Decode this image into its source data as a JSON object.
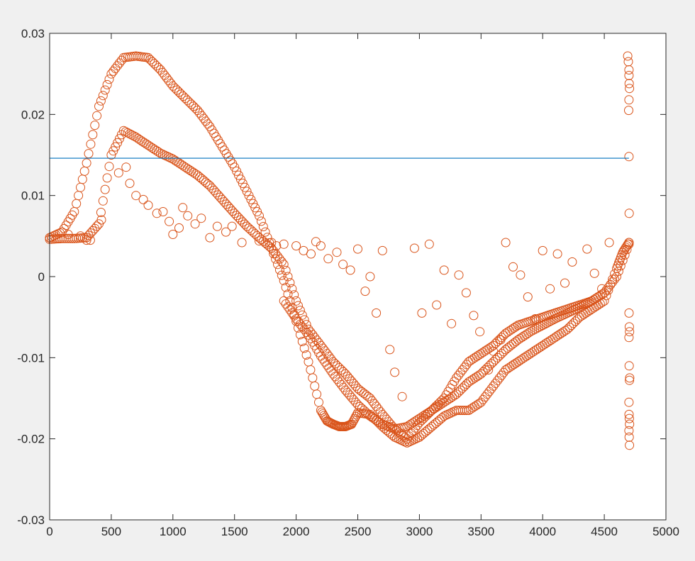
{
  "colors": {
    "background": "#f0f0f0",
    "axes_background": "#ffffff",
    "axis": "#262626",
    "scatter": "#d95319",
    "line": "#0072bd"
  },
  "chart_data": {
    "type": "scatter",
    "title": "",
    "xlabel": "",
    "ylabel": "",
    "xlim": [
      0,
      5000
    ],
    "ylim": [
      -0.03,
      0.03
    ],
    "grid": false,
    "legend": "none",
    "x_ticks": [
      0,
      500,
      1000,
      1500,
      2000,
      2500,
      3000,
      3500,
      4000,
      4500,
      5000
    ],
    "x_tick_labels": [
      "0",
      "500",
      "1000",
      "1500",
      "2000",
      "2500",
      "3000",
      "3500",
      "4000",
      "4500",
      "5000"
    ],
    "y_ticks": [
      -0.03,
      -0.02,
      -0.01,
      0,
      0.01,
      0.02,
      0.03
    ],
    "y_tick_labels": [
      "-0.03",
      "-0.02",
      "-0.01",
      "0",
      "0.01",
      "0.02",
      "0.03"
    ],
    "marker": "open-circle",
    "horizontal_line": {
      "y": 0.0146,
      "x_range": [
        0,
        4700
      ]
    },
    "series": [
      {
        "role": "upper-band",
        "x": [
          0,
          100,
          200,
          300,
          400,
          500,
          600,
          700,
          800,
          900,
          1000,
          1100,
          1200,
          1300,
          1400,
          1500,
          1600,
          1700,
          1800,
          1900,
          2000,
          2100,
          2200,
          2250,
          2300,
          2350,
          2400,
          2450,
          2500,
          2600,
          2700,
          2800,
          2900,
          3000,
          3100,
          3200,
          3300,
          3400,
          3500,
          3600,
          3700,
          3800,
          3900,
          4000,
          4100,
          4200,
          4300,
          4400,
          4500,
          4600,
          4650,
          4700
        ],
        "y": [
          0.0048,
          0.0055,
          0.008,
          0.014,
          0.021,
          0.025,
          0.027,
          0.0272,
          0.027,
          0.0255,
          0.0235,
          0.022,
          0.0205,
          0.0185,
          0.016,
          0.0135,
          0.0105,
          0.0075,
          0.0035,
          -0.0005,
          -0.0055,
          -0.0105,
          -0.0165,
          -0.0178,
          -0.0182,
          -0.0185,
          -0.0185,
          -0.0182,
          -0.0168,
          -0.017,
          -0.0185,
          -0.0198,
          -0.0205,
          -0.0198,
          -0.0185,
          -0.0172,
          -0.0165,
          -0.0165,
          -0.0155,
          -0.0135,
          -0.0115,
          -0.0105,
          -0.0095,
          -0.0085,
          -0.0075,
          -0.0065,
          -0.005,
          -0.004,
          -0.003,
          0.001,
          0.003,
          0.0042
        ]
      },
      {
        "role": "lower-band",
        "x": [
          0,
          100,
          200,
          300,
          400,
          500,
          600,
          700,
          800,
          900,
          1000,
          1100,
          1200,
          1300,
          1400,
          1500,
          1600,
          1700,
          1800,
          1900,
          2000,
          2100,
          2200,
          2300,
          2400,
          2500,
          2600,
          2700,
          2800,
          2900,
          3000,
          3100,
          3200,
          3300,
          3400,
          3500,
          3600,
          3700,
          3800,
          3900,
          4000,
          4100,
          4200,
          4300,
          4400,
          4500,
          4600,
          4700
        ],
        "y": [
          0.0046,
          0.0047,
          0.0047,
          0.0048,
          0.0065,
          0.015,
          0.018,
          0.0172,
          0.0162,
          0.0152,
          0.0145,
          0.0135,
          0.0125,
          0.0112,
          0.0095,
          0.0078,
          0.0062,
          0.0048,
          0.0035,
          0.0015,
          -0.003,
          -0.0065,
          -0.0085,
          -0.0105,
          -0.012,
          -0.0138,
          -0.015,
          -0.017,
          -0.0188,
          -0.02,
          -0.018,
          -0.0165,
          -0.015,
          -0.0125,
          -0.0105,
          -0.0095,
          -0.0085,
          -0.007,
          -0.006,
          -0.0055,
          -0.005,
          -0.0045,
          -0.004,
          -0.0035,
          -0.003,
          -0.002,
          0.0,
          0.004
        ]
      },
      {
        "role": "inner-band",
        "x": [
          1900,
          2000,
          2100,
          2200,
          2300,
          2400,
          2500,
          2600,
          2700,
          2800,
          2900,
          3000,
          3100,
          3200,
          3300,
          3400,
          3500,
          3600,
          3700,
          3800,
          3900,
          4000,
          4100,
          4200,
          4300,
          4400,
          4500
        ],
        "y": [
          -0.003,
          -0.0052,
          -0.0072,
          -0.0098,
          -0.012,
          -0.014,
          -0.0158,
          -0.0172,
          -0.0182,
          -0.0188,
          -0.0185,
          -0.0175,
          -0.0165,
          -0.0155,
          -0.0145,
          -0.013,
          -0.012,
          -0.0105,
          -0.009,
          -0.0078,
          -0.0068,
          -0.006,
          -0.0052,
          -0.0045,
          -0.0038,
          -0.003,
          -0.002
        ]
      },
      {
        "role": "scattered-points",
        "x": [
          150,
          250,
          300,
          330,
          420,
          560,
          620,
          650,
          700,
          760,
          800,
          870,
          920,
          970,
          1000,
          1050,
          1080,
          1120,
          1180,
          1230,
          1300,
          1360,
          1430,
          1480,
          1560,
          1700,
          1800,
          1840,
          1900,
          2000,
          2060,
          2120,
          2160,
          2200,
          2260,
          2330,
          2380,
          2440,
          2500,
          2560,
          2600,
          2650,
          2700,
          2760,
          2800,
          2860,
          2960,
          3020,
          3080,
          3140,
          3200,
          3260,
          3320,
          3380,
          3440,
          3490,
          3560,
          3600,
          3660,
          3700,
          3760,
          3820,
          3880,
          3940,
          4000,
          4060,
          4120,
          4180,
          4240,
          4300,
          4360,
          4420,
          4480,
          4540
        ],
        "y": [
          0.0052,
          0.005,
          0.0045,
          0.0045,
          0.007,
          0.0128,
          0.0135,
          0.0115,
          0.01,
          0.0095,
          0.0088,
          0.0078,
          0.008,
          0.0068,
          0.0052,
          0.006,
          0.0085,
          0.0075,
          0.0065,
          0.0072,
          0.0048,
          0.0062,
          0.0055,
          0.0062,
          0.0042,
          0.0044,
          0.0042,
          0.0038,
          0.004,
          0.0038,
          0.0032,
          0.0028,
          0.0043,
          0.0038,
          0.0022,
          0.003,
          0.0015,
          0.0008,
          0.0034,
          -0.0018,
          0.0,
          -0.0045,
          0.0032,
          -0.009,
          -0.0118,
          -0.0148,
          0.0035,
          -0.0045,
          0.004,
          -0.0035,
          0.0008,
          -0.0058,
          0.0002,
          -0.002,
          -0.0048,
          -0.0068,
          -0.0115,
          -0.0092,
          -0.0078,
          0.0042,
          0.0012,
          0.0002,
          -0.0025,
          -0.0052,
          0.0032,
          -0.0015,
          0.0028,
          -0.0008,
          0.0018,
          -0.0035,
          0.0034,
          0.0004,
          -0.0015,
          0.0042
        ]
      },
      {
        "role": "right-edge-column",
        "x": [
          4690,
          4695,
          4700,
          4700,
          4702,
          4704,
          4700,
          4698,
          4700,
          4702,
          4700,
          4701,
          4703,
          4705,
          4700,
          4702,
          4704,
          4700,
          4701,
          4703,
          4705,
          4700,
          4702,
          4704,
          4706
        ],
        "y": [
          0.0272,
          0.0265,
          0.0255,
          0.0248,
          0.0238,
          0.0232,
          0.0218,
          0.0205,
          0.0148,
          0.0078,
          0.0042,
          -0.0045,
          -0.0062,
          -0.0068,
          -0.0075,
          -0.011,
          -0.0128,
          -0.0155,
          -0.017,
          -0.0175,
          -0.0182,
          -0.019,
          -0.0198,
          -0.0208,
          -0.0125
        ]
      }
    ]
  }
}
